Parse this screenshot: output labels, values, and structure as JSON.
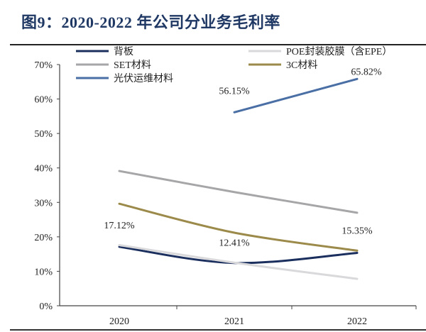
{
  "title": "图9：2020-2022 年公司分业务毛利率",
  "chart_data": {
    "type": "line",
    "title": "图9：2020-2022 年公司分业务毛利率",
    "categories": [
      "2020",
      "2021",
      "2022"
    ],
    "ylim": [
      0,
      70
    ],
    "yticks": [
      "0%",
      "10%",
      "20%",
      "30%",
      "40%",
      "50%",
      "60%",
      "70%"
    ],
    "grid": false,
    "legend": "top",
    "series": [
      {
        "name": "背板",
        "values": [
          17.12,
          12.41,
          15.35
        ],
        "color": "#1b2f5e",
        "labels": [
          "17.12%",
          "12.41%",
          "15.35%"
        ]
      },
      {
        "name": "POE封装胶膜（含EPE）",
        "values": [
          17.6,
          12.5,
          7.8
        ],
        "color": "#d9d9dc"
      },
      {
        "name": "SET材料",
        "values": [
          39.1,
          33.0,
          27.0
        ],
        "color": "#a6a6a8"
      },
      {
        "name": "3C材料",
        "values": [
          29.6,
          21.2,
          16.0
        ],
        "color": "#9b8a4a"
      },
      {
        "name": "光伏运维材料",
        "values": [
          null,
          56.15,
          65.82
        ],
        "color": "#4a6fa5",
        "labels": [
          null,
          "56.15%",
          "65.82%"
        ]
      }
    ]
  }
}
